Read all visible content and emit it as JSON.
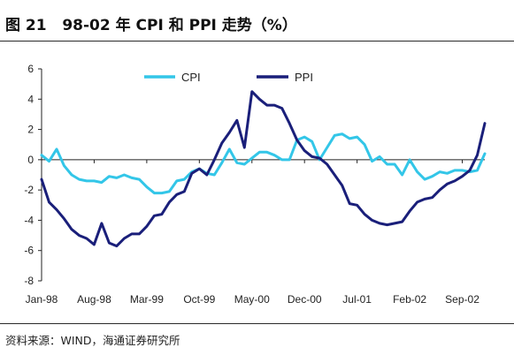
{
  "figure": {
    "title": "图 21   98-02 年 CPI 和 PPI 走势（%）",
    "source": "资料来源：WIND，海通证券研究所"
  },
  "chart_data": {
    "type": "line",
    "x": [
      "1998-01",
      "1998-02",
      "1998-03",
      "1998-04",
      "1998-05",
      "1998-06",
      "1998-07",
      "1998-08",
      "1998-09",
      "1998-10",
      "1998-11",
      "1998-12",
      "1999-01",
      "1999-02",
      "1999-03",
      "1999-04",
      "1999-05",
      "1999-06",
      "1999-07",
      "1999-08",
      "1999-09",
      "1999-10",
      "1999-11",
      "1999-12",
      "2000-01",
      "2000-02",
      "2000-03",
      "2000-04",
      "2000-05",
      "2000-06",
      "2000-07",
      "2000-08",
      "2000-09",
      "2000-10",
      "2000-11",
      "2000-12",
      "2001-01",
      "2001-02",
      "2001-03",
      "2001-04",
      "2001-05",
      "2001-06",
      "2001-07",
      "2001-08",
      "2001-09",
      "2001-10",
      "2001-11",
      "2001-12",
      "2002-01",
      "2002-02",
      "2002-03",
      "2002-04",
      "2002-05",
      "2002-06",
      "2002-07",
      "2002-08",
      "2002-09",
      "2002-10",
      "2002-11",
      "2002-12"
    ],
    "x_tick_labels": [
      "Jan-98",
      "Aug-98",
      "Mar-99",
      "Oct-99",
      "May-00",
      "Dec-00",
      "Jul-01",
      "Feb-02",
      "Sep-02"
    ],
    "x_tick_indices": [
      0,
      7,
      14,
      21,
      28,
      35,
      42,
      49,
      56
    ],
    "series": [
      {
        "name": "CPI",
        "color": "#33c6e8",
        "values": [
          0.3,
          -0.1,
          0.7,
          -0.4,
          -1.0,
          -1.3,
          -1.4,
          -1.4,
          -1.5,
          -1.1,
          -1.2,
          -1.0,
          -1.2,
          -1.3,
          -1.8,
          -2.2,
          -2.2,
          -2.1,
          -1.4,
          -1.3,
          -0.8,
          -0.6,
          -0.9,
          -1.0,
          -0.2,
          0.7,
          -0.2,
          -0.3,
          0.1,
          0.5,
          0.5,
          0.3,
          0.0,
          0.0,
          1.3,
          1.5,
          1.2,
          0.0,
          0.8,
          1.6,
          1.7,
          1.4,
          1.5,
          1.0,
          -0.1,
          0.2,
          -0.3,
          -0.3,
          -1.0,
          0.0,
          -0.8,
          -1.3,
          -1.1,
          -0.8,
          -0.9,
          -0.7,
          -0.7,
          -0.8,
          -0.7,
          0.4
        ]
      },
      {
        "name": "PPI",
        "color": "#1a1f7a",
        "values": [
          -1.3,
          -2.8,
          -3.3,
          -3.9,
          -4.6,
          -5.0,
          -5.2,
          -5.6,
          -4.2,
          -5.5,
          -5.7,
          -5.2,
          -4.9,
          -4.9,
          -4.4,
          -3.7,
          -3.6,
          -2.8,
          -2.3,
          -2.1,
          -0.9,
          -0.6,
          -1.0,
          0.0,
          1.1,
          1.8,
          2.6,
          0.8,
          4.5,
          4.0,
          3.6,
          3.6,
          3.4,
          2.4,
          1.3,
          0.6,
          0.2,
          0.1,
          -0.3,
          -1.0,
          -1.7,
          -2.9,
          -3.0,
          -3.6,
          -4.0,
          -4.2,
          -4.3,
          -4.2,
          -4.1,
          -3.4,
          -2.8,
          -2.6,
          -2.5,
          -2.0,
          -1.6,
          -1.4,
          -1.1,
          -0.7,
          0.3,
          2.4
        ]
      }
    ],
    "ylim": [
      -8,
      6
    ],
    "yticks": [
      -8,
      -6,
      -4,
      -2,
      0,
      2,
      4,
      6
    ],
    "grid": false,
    "legend_position": "top"
  }
}
